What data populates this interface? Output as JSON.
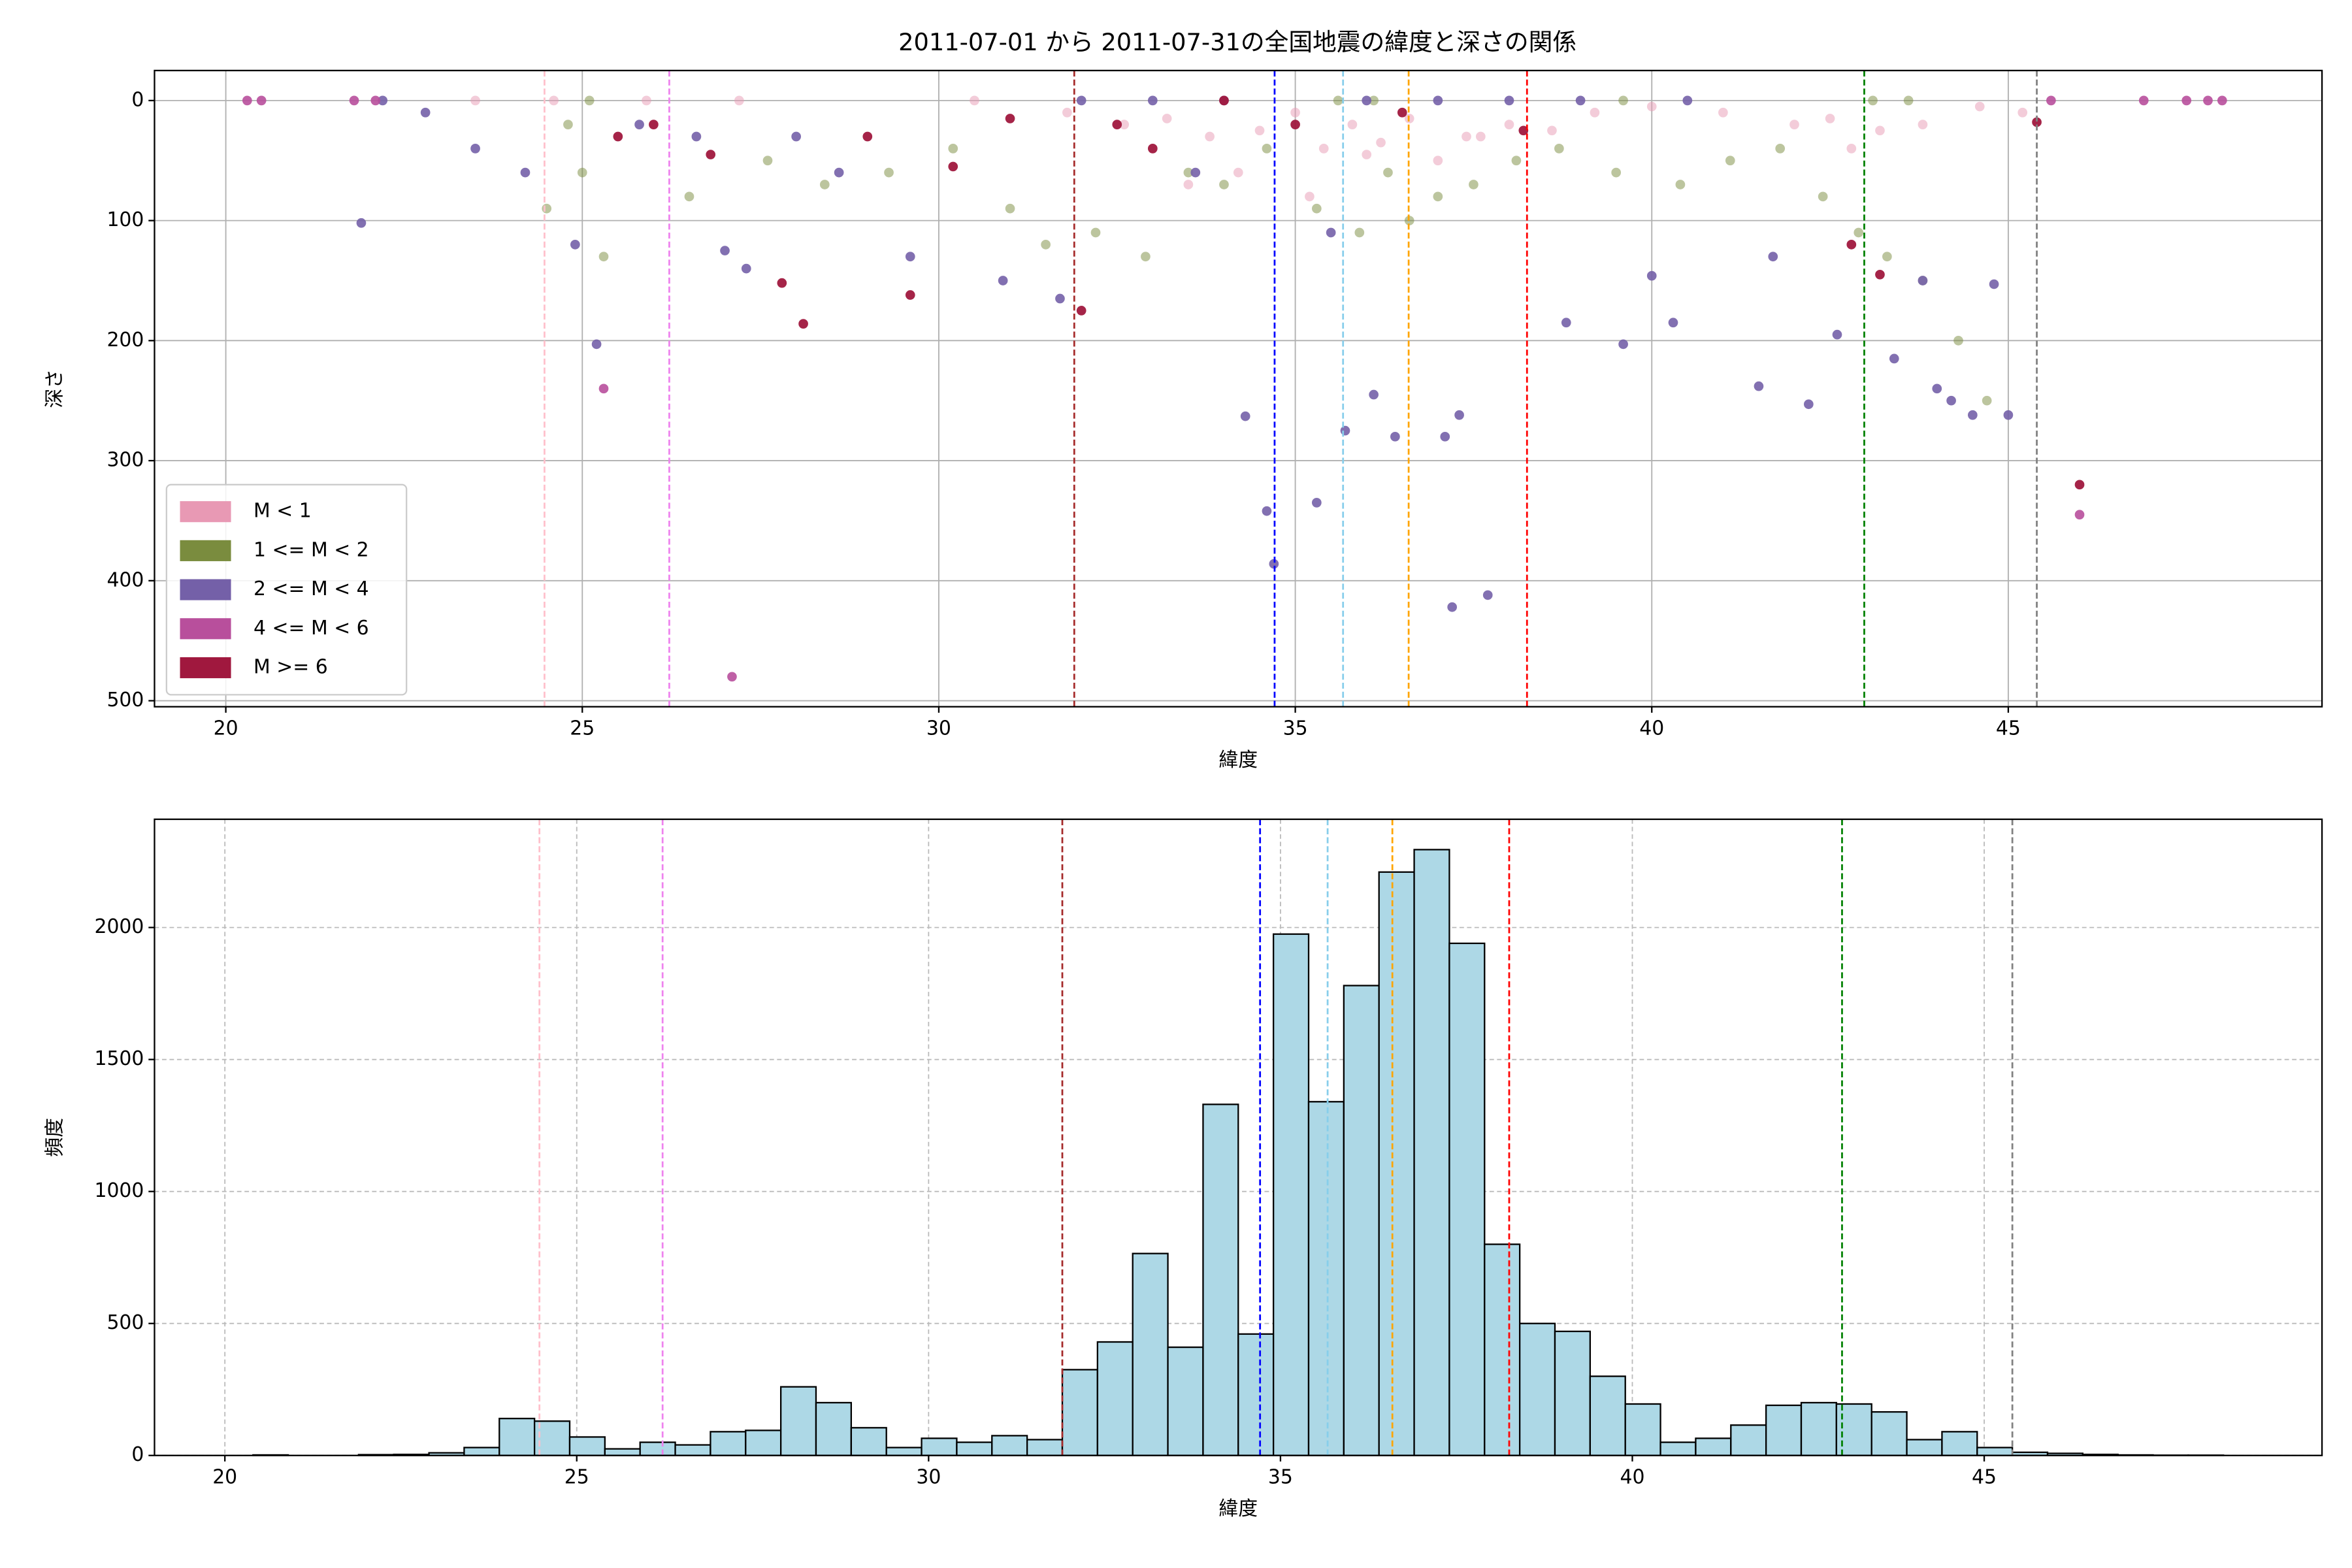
{
  "chart_data": [
    {
      "type": "scatter",
      "title": "2011-07-01 から 2011-07-31の全国地震の緯度と深さの関係",
      "xlabel": "緯度",
      "ylabel": "深さ",
      "xlim": [
        19,
        49.4
      ],
      "ylim": [
        -25,
        505
      ],
      "y_inverted": true,
      "xticks": [
        20,
        25,
        30,
        35,
        40,
        45
      ],
      "yticks": [
        0,
        100,
        200,
        300,
        400,
        500
      ],
      "grid": true,
      "legend": "lower left",
      "vlines": [
        {
          "x": 24.47,
          "color": "pink"
        },
        {
          "x": 26.22,
          "color": "violet"
        },
        {
          "x": 31.9,
          "color": "brown"
        },
        {
          "x": 34.71,
          "color": "blue"
        },
        {
          "x": 35.67,
          "color": "skyblue"
        },
        {
          "x": 36.59,
          "color": "orange"
        },
        {
          "x": 38.25,
          "color": "red"
        },
        {
          "x": 42.98,
          "color": "green"
        },
        {
          "x": 45.4,
          "color": "gray"
        }
      ],
      "series": [
        {
          "name": "M < 1",
          "color": "#e899b4",
          "alpha": 0.5,
          "x": [
            23.5,
            24.6,
            25.9,
            27.2,
            30.5,
            31.8,
            32.6,
            33.2,
            33.8,
            34.5,
            35.0,
            35.4,
            35.8,
            36.2,
            36.6,
            37.0,
            37.4,
            38.0,
            38.6,
            39.2,
            40.0,
            41.0,
            42.0,
            42.5,
            43.2,
            43.8,
            44.6,
            45.2,
            33.5,
            34.2,
            35.2,
            36.0,
            37.6,
            42.8
          ],
          "values": [
            0,
            0,
            0,
            0,
            0,
            10,
            20,
            15,
            30,
            25,
            10,
            40,
            20,
            35,
            15,
            50,
            30,
            20,
            25,
            10,
            5,
            10,
            20,
            15,
            25,
            20,
            5,
            10,
            70,
            60,
            80,
            45,
            30,
            40
          ]
        },
        {
          "name": "1 <= M < 2",
          "color": "#7a8c3e",
          "alpha": 0.5,
          "x": [
            24.5,
            25.0,
            25.3,
            26.5,
            27.6,
            28.4,
            29.3,
            30.2,
            31.0,
            31.5,
            32.2,
            32.9,
            33.5,
            34.0,
            34.6,
            35.3,
            35.9,
            36.3,
            36.6,
            37.0,
            37.5,
            38.1,
            38.7,
            39.5,
            40.4,
            41.1,
            41.8,
            42.4,
            42.9,
            43.3,
            43.8,
            44.3,
            44.7,
            24.8,
            25.1,
            35.6,
            36.1,
            39.6,
            43.1,
            43.6
          ],
          "values": [
            90,
            60,
            130,
            80,
            50,
            70,
            60,
            40,
            90,
            120,
            110,
            130,
            60,
            70,
            40,
            90,
            110,
            60,
            100,
            80,
            70,
            50,
            40,
            60,
            70,
            50,
            40,
            80,
            110,
            130,
            150,
            200,
            250,
            20,
            0,
            0,
            0,
            0,
            0,
            0
          ]
        },
        {
          "name": "2 <= M < 4",
          "color": "#7460a8",
          "alpha": 0.9,
          "x": [
            21.9,
            22.8,
            23.5,
            24.2,
            24.9,
            25.2,
            26.6,
            27.0,
            27.3,
            28.6,
            29.6,
            30.9,
            31.7,
            33.6,
            34.3,
            34.6,
            34.7,
            35.3,
            35.5,
            35.7,
            36.1,
            36.4,
            37.1,
            37.2,
            37.3,
            37.7,
            38.8,
            39.6,
            40.0,
            40.3,
            41.5,
            41.7,
            42.2,
            42.6,
            43.4,
            43.8,
            44.0,
            44.2,
            44.5,
            44.8,
            45.0,
            32.0,
            33.0,
            34.0,
            36.0,
            37.0,
            38.0,
            39.0,
            40.5,
            25.8,
            28.0,
            22.2
          ],
          "values": [
            102,
            10,
            40,
            60,
            120,
            203,
            30,
            125,
            140,
            60,
            130,
            150,
            165,
            60,
            263,
            342,
            386,
            335,
            110,
            275,
            245,
            280,
            280,
            422,
            262,
            412,
            185,
            203,
            146,
            185,
            238,
            130,
            253,
            195,
            215,
            150,
            240,
            250,
            262,
            153,
            262,
            0,
            0,
            0,
            0,
            0,
            0,
            0,
            0,
            20,
            30,
            0
          ]
        },
        {
          "name": "4 <= M < 6",
          "color": "#b84f9c",
          "alpha": 0.9,
          "x": [
            20.3,
            20.5,
            25.3,
            27.1,
            46.0,
            45.6,
            46.9,
            47.5,
            48.0,
            47.8,
            21.8,
            22.1
          ],
          "values": [
            0,
            0,
            240,
            480,
            345,
            0,
            0,
            0,
            0,
            0,
            0,
            0
          ]
        },
        {
          "name": "M >= 6",
          "color": "#a0183e",
          "alpha": 0.95,
          "x": [
            25.5,
            26.0,
            26.8,
            27.8,
            28.1,
            29.6,
            30.2,
            31.0,
            32.0,
            32.5,
            33.0,
            35.0,
            36.5,
            38.2,
            42.8,
            43.2,
            45.4,
            46.0,
            29.0,
            34.0
          ],
          "values": [
            30,
            20,
            45,
            152,
            186,
            162,
            55,
            15,
            175,
            20,
            40,
            20,
            10,
            25,
            120,
            145,
            18,
            320,
            30,
            0
          ]
        }
      ]
    },
    {
      "type": "histogram",
      "xlabel": "緯度",
      "ylabel": "頻度",
      "xlim": [
        19,
        49.8
      ],
      "ylim": [
        0,
        2410
      ],
      "xticks": [
        20,
        25,
        30,
        35,
        40,
        45
      ],
      "yticks": [
        0,
        500,
        1000,
        1500,
        2000
      ],
      "grid": true,
      "color": "#add8e6",
      "edgecolor": "#000000",
      "vlines": [
        {
          "x": 24.47,
          "color": "pink"
        },
        {
          "x": 26.22,
          "color": "violet"
        },
        {
          "x": 31.9,
          "color": "brown"
        },
        {
          "x": 34.71,
          "color": "blue"
        },
        {
          "x": 35.67,
          "color": "skyblue"
        },
        {
          "x": 36.59,
          "color": "orange"
        },
        {
          "x": 38.25,
          "color": "red"
        },
        {
          "x": 42.98,
          "color": "green"
        },
        {
          "x": 45.4,
          "color": "gray"
        }
      ],
      "bins": [
        20.4,
        20.9,
        21.4,
        21.9,
        22.4,
        22.9,
        23.4,
        23.9,
        24.4,
        24.9,
        25.4,
        25.9,
        26.4,
        26.9,
        27.4,
        27.9,
        28.4,
        28.9,
        29.4,
        29.9,
        30.4,
        30.9,
        31.4,
        31.9,
        32.4,
        32.9,
        33.4,
        33.9,
        34.4,
        34.9,
        35.4,
        35.9,
        36.4,
        36.9,
        37.4,
        37.9,
        38.4,
        38.9,
        39.4,
        39.9,
        40.4,
        40.9,
        41.4,
        41.9,
        42.4,
        42.9,
        43.4,
        43.9,
        44.4,
        44.9,
        45.4,
        45.9,
        46.4,
        46.9,
        47.4,
        47.9,
        48.4
      ],
      "values": [
        2,
        0,
        0,
        3,
        4,
        10,
        30,
        140,
        130,
        70,
        25,
        50,
        40,
        90,
        95,
        260,
        200,
        105,
        30,
        65,
        50,
        75,
        60,
        325,
        430,
        765,
        410,
        1330,
        460,
        1975,
        1340,
        1780,
        2210,
        2295,
        1940,
        800,
        500,
        470,
        300,
        195,
        50,
        65,
        115,
        190,
        200,
        195,
        165,
        60,
        90,
        30,
        12,
        8,
        4,
        2,
        1,
        1
      ]
    }
  ]
}
